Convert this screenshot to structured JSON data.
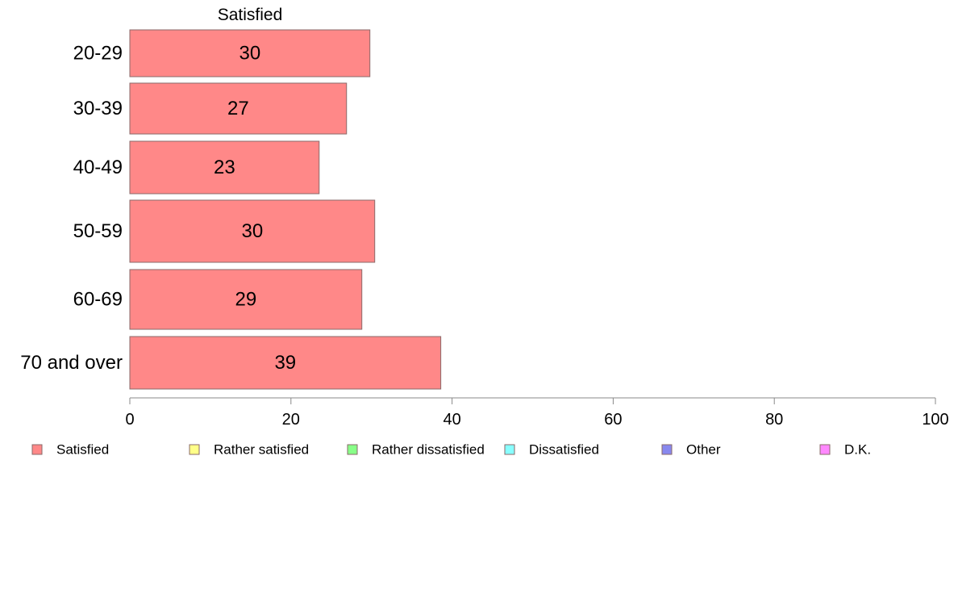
{
  "colors": {
    "satisfied": "#ff8888",
    "rather_satisfied": "#ffff88",
    "rather_dissatisfied": "#88ff88",
    "dissatisfied": "#88ffff",
    "other": "#8888ee",
    "dk": "#ff88ff",
    "bar_stroke": "#8a6a6a",
    "axis": "#888888"
  },
  "chart_data": {
    "type": "bar",
    "orientation": "horizontal",
    "column_header": "Satisfied",
    "categories": [
      "20-29",
      "30-39",
      "40-49",
      "50-59",
      "60-69",
      "70 and over"
    ],
    "series": [
      {
        "name": "Satisfied",
        "values": [
          29.8,
          26.9,
          23.5,
          30.4,
          28.8,
          38.6
        ],
        "labels": [
          "30",
          "27",
          "23",
          "30",
          "29",
          "39"
        ]
      }
    ],
    "xlim": [
      0,
      100
    ],
    "xticks": [
      0,
      20,
      40,
      60,
      80,
      100
    ],
    "grid": false,
    "legend": {
      "position": "bottom",
      "entries": [
        {
          "label": "Satisfied",
          "color_key": "satisfied"
        },
        {
          "label": "Rather satisfied",
          "color_key": "rather_satisfied"
        },
        {
          "label": "Rather dissatisfied",
          "color_key": "rather_dissatisfied"
        },
        {
          "label": "Dissatisfied",
          "color_key": "dissatisfied"
        },
        {
          "label": "Other",
          "color_key": "other"
        },
        {
          "label": "D.K.",
          "color_key": "dk"
        }
      ]
    }
  }
}
